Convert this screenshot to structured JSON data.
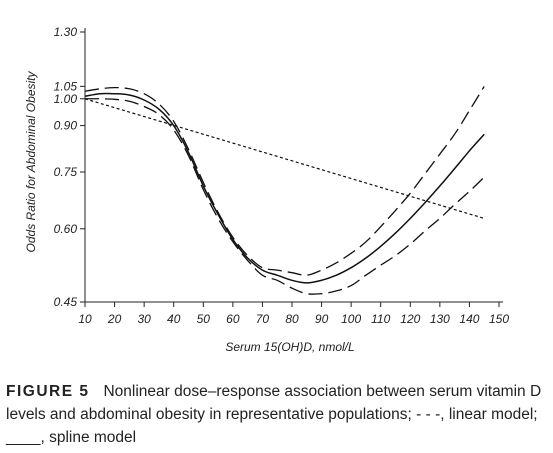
{
  "chart_data": {
    "type": "line",
    "xlabel": "Serum 15(OH)D, nmol/L",
    "ylabel": "Odds Ratio for Abdominal Obesity",
    "y_scale": "log",
    "xlim": [
      10,
      150
    ],
    "ylim": [
      0.45,
      1.3
    ],
    "x_ticks": [
      10,
      20,
      30,
      40,
      50,
      60,
      70,
      80,
      90,
      100,
      110,
      120,
      130,
      140,
      150
    ],
    "x_tick_labels": [
      "10",
      "20",
      "30",
      "40",
      "50",
      "60",
      "70",
      "80",
      "90",
      "100",
      "110",
      "120",
      "130",
      "140",
      "150"
    ],
    "y_ticks": [
      0.45,
      0.6,
      0.75,
      0.9,
      1.0,
      1.05,
      1.3
    ],
    "y_tick_labels": [
      "0.45",
      "0.60",
      "0.75",
      "0.90",
      "1.00",
      "1.05",
      "1.30"
    ],
    "grid": false,
    "legend": "none",
    "series": [
      {
        "style": "spline",
        "x": [
          10,
          15,
          20,
          25,
          30,
          35,
          40,
          45,
          50,
          55,
          60,
          65,
          70,
          75,
          80,
          85,
          90,
          95,
          100,
          105,
          110,
          115,
          120,
          125,
          130,
          135,
          140,
          145
        ],
        "values": [
          1.01,
          1.02,
          1.02,
          1.015,
          0.995,
          0.96,
          0.9,
          0.81,
          0.71,
          0.635,
          0.575,
          0.535,
          0.51,
          0.5,
          0.49,
          0.485,
          0.49,
          0.5,
          0.515,
          0.535,
          0.56,
          0.59,
          0.625,
          0.665,
          0.71,
          0.76,
          0.815,
          0.87
        ]
      },
      {
        "style": "upper 95% CI",
        "x": [
          10,
          15,
          20,
          25,
          30,
          35,
          40,
          45,
          50,
          55,
          60,
          65,
          70,
          75,
          80,
          85,
          90,
          95,
          100,
          105,
          110,
          115,
          120,
          125,
          130,
          135,
          140,
          145
        ],
        "values": [
          1.03,
          1.04,
          1.045,
          1.04,
          1.02,
          0.98,
          0.915,
          0.82,
          0.72,
          0.64,
          0.58,
          0.54,
          0.515,
          0.51,
          0.505,
          0.5,
          0.51,
          0.525,
          0.545,
          0.57,
          0.605,
          0.645,
          0.69,
          0.745,
          0.805,
          0.87,
          0.955,
          1.05
        ]
      },
      {
        "style": "lower 95% CI",
        "x": [
          10,
          15,
          20,
          25,
          30,
          35,
          40,
          45,
          50,
          55,
          60,
          65,
          70,
          75,
          80,
          85,
          90,
          95,
          100,
          105,
          110,
          115,
          120,
          125,
          130,
          135,
          140,
          145
        ],
        "values": [
          1.0,
          1.0,
          0.998,
          0.99,
          0.97,
          0.94,
          0.885,
          0.8,
          0.7,
          0.625,
          0.57,
          0.53,
          0.5,
          0.49,
          0.475,
          0.465,
          0.465,
          0.47,
          0.48,
          0.5,
          0.52,
          0.54,
          0.565,
          0.595,
          0.625,
          0.66,
          0.695,
          0.735
        ]
      },
      {
        "style": "linear model",
        "x": [
          10,
          145
        ],
        "values": [
          1.0,
          0.625
        ]
      }
    ]
  },
  "caption": {
    "label": "FIGURE 5",
    "text": "Nonlinear dose–response association between serum vitamin D levels and abdominal obesity in representative populations; - - -, linear model; ____, spline model"
  }
}
